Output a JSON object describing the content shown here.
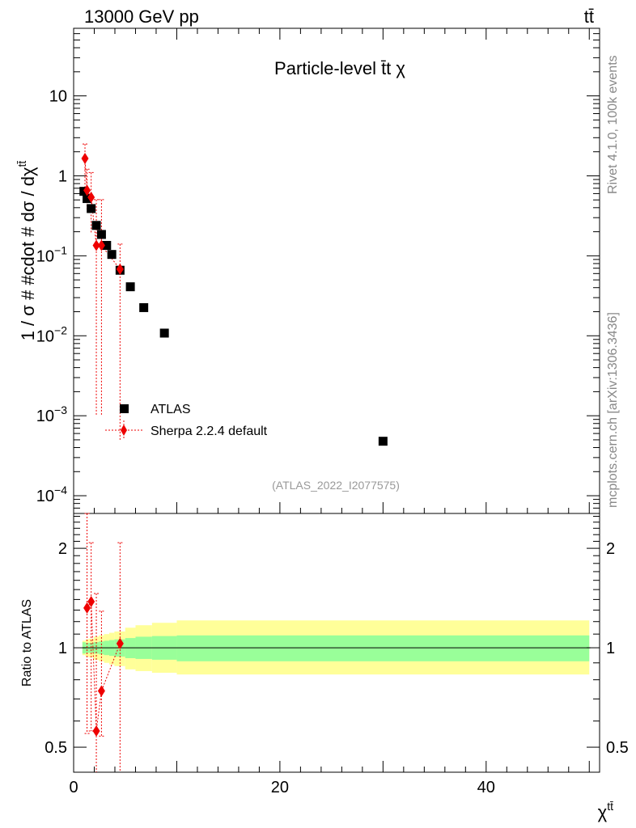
{
  "header": {
    "energy_label": "13000 GeV pp",
    "process_label": "tt̄"
  },
  "side": {
    "rivet": "Rivet 4.1.0,  100k events",
    "mcplots": "mcplots.cern.ch [arXiv:1306.3436]"
  },
  "colors": {
    "data": "#000000",
    "mc": "#ee0000",
    "band_inner": "#99ff99",
    "band_outer": "#ffff99"
  },
  "chart_data": [
    {
      "type": "scatter",
      "title": "Particle-level t̄t χ",
      "ylabel": "1 / σ # #cdot # dσ / dχ",
      "ylabel_sup": "tt̄",
      "yscale": "log",
      "ylim": [
        6e-05,
        70
      ],
      "xlim": [
        0,
        51
      ],
      "yticks": [
        {
          "value": 0.0001,
          "base": "10",
          "exp": "−4"
        },
        {
          "value": 0.001,
          "base": "10",
          "exp": "−3"
        },
        {
          "value": 0.01,
          "base": "10",
          "exp": "−2"
        },
        {
          "value": 0.1,
          "base": "10",
          "exp": "−1"
        },
        {
          "value": 1,
          "base": "1",
          "exp": ""
        },
        {
          "value": 10,
          "base": "10",
          "exp": ""
        }
      ],
      "watermark": "(ATLAS_2022_I2077575)",
      "legend": {
        "position": "center",
        "data": "ATLAS",
        "mc": "Sherpa 2.2.4 default"
      },
      "series": [
        {
          "name": "ATLAS",
          "marker": "square",
          "x": [
            1.0,
            1.3,
            1.7,
            2.2,
            2.7,
            3.2,
            3.7,
            4.5,
            5.5,
            6.8,
            8.8,
            30.0
          ],
          "y": [
            0.64,
            0.52,
            0.39,
            0.24,
            0.185,
            0.135,
            0.104,
            0.066,
            0.041,
            0.0225,
            0.0108,
            0.00048
          ]
        },
        {
          "name": "Sherpa 2.2.4 default",
          "marker": "diamond",
          "x": [
            1.1,
            1.3,
            1.7,
            2.2,
            2.7,
            4.5
          ],
          "y": [
            1.65,
            0.66,
            0.54,
            0.135,
            0.135,
            0.068
          ],
          "err_low": [
            1.15,
            0.3,
            0.35,
            0.134,
            0.134,
            0.0675
          ],
          "err_high": [
            0.85,
            0.55,
            0.56,
            0.37,
            0.37,
            0.072
          ]
        }
      ]
    },
    {
      "type": "scatter",
      "title": "",
      "ylabel": "Ratio to ATLAS",
      "xlabel": "χ",
      "xlabel_sup": "tt̄",
      "yscale": "log",
      "ylim": [
        0.42,
        2.55
      ],
      "xlim": [
        0,
        51
      ],
      "xticks": [
        0,
        20,
        40
      ],
      "yticks": [
        0.5,
        1,
        2
      ],
      "band": {
        "x_edges": [
          0.85,
          1.15,
          1.45,
          1.95,
          2.45,
          2.95,
          3.45,
          3.95,
          5.0,
          6.0,
          7.6,
          10.0,
          50.0
        ],
        "inner_low": [
          0.96,
          0.965,
          0.965,
          0.96,
          0.955,
          0.95,
          0.945,
          0.94,
          0.93,
          0.925,
          0.92,
          0.91
        ],
        "inner_high": [
          1.04,
          1.035,
          1.035,
          1.04,
          1.045,
          1.05,
          1.055,
          1.06,
          1.07,
          1.08,
          1.085,
          1.09
        ],
        "outer_low": [
          0.95,
          0.94,
          0.935,
          0.92,
          0.91,
          0.9,
          0.89,
          0.88,
          0.86,
          0.85,
          0.84,
          0.83
        ],
        "outer_high": [
          1.05,
          1.06,
          1.065,
          1.08,
          1.09,
          1.1,
          1.11,
          1.12,
          1.15,
          1.17,
          1.19,
          1.21
        ]
      },
      "series": [
        {
          "name": "Sherpa 2.2.4 default",
          "marker": "diamond",
          "x": [
            1.3,
            1.7,
            2.2,
            2.7,
            4.5
          ],
          "y": [
            1.32,
            1.38,
            0.56,
            0.74,
            1.03
          ],
          "err_low": [
            0.77,
            0.82,
            0.15,
            0.2,
            0.95
          ],
          "err_high": [
            1.25,
            0.7,
            0.9,
            0.55,
            1.05
          ]
        }
      ]
    }
  ]
}
